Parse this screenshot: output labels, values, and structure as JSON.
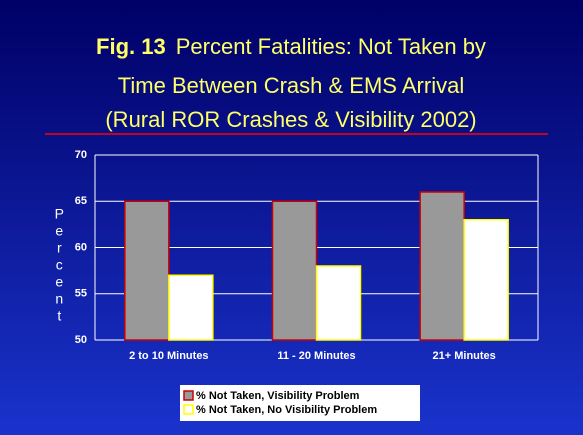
{
  "chart_data": {
    "type": "bar",
    "figure_label": "Fig. 13",
    "title_lines": [
      "Percent Fatalities: Not Taken by",
      "Time Between Crash & EMS Arrival",
      "(Rural ROR Crashes & Visibility 2002)"
    ],
    "ylabel": "Percent",
    "categories": [
      "2 to 10 Minutes",
      "11 - 20 Minutes",
      "21+ Minutes"
    ],
    "series": [
      {
        "name": "% Not Taken, Visibility Problem",
        "color": "#999999",
        "border": "#cc0000",
        "values": [
          65,
          65,
          66
        ]
      },
      {
        "name": "% Not Taken, No Visibility Problem",
        "color": "#ffffff",
        "border": "#ffff00",
        "values": [
          57,
          58,
          63
        ]
      }
    ],
    "ylim": [
      50,
      70
    ],
    "yticks": [
      50,
      55,
      60,
      65,
      70
    ],
    "grid": true
  }
}
